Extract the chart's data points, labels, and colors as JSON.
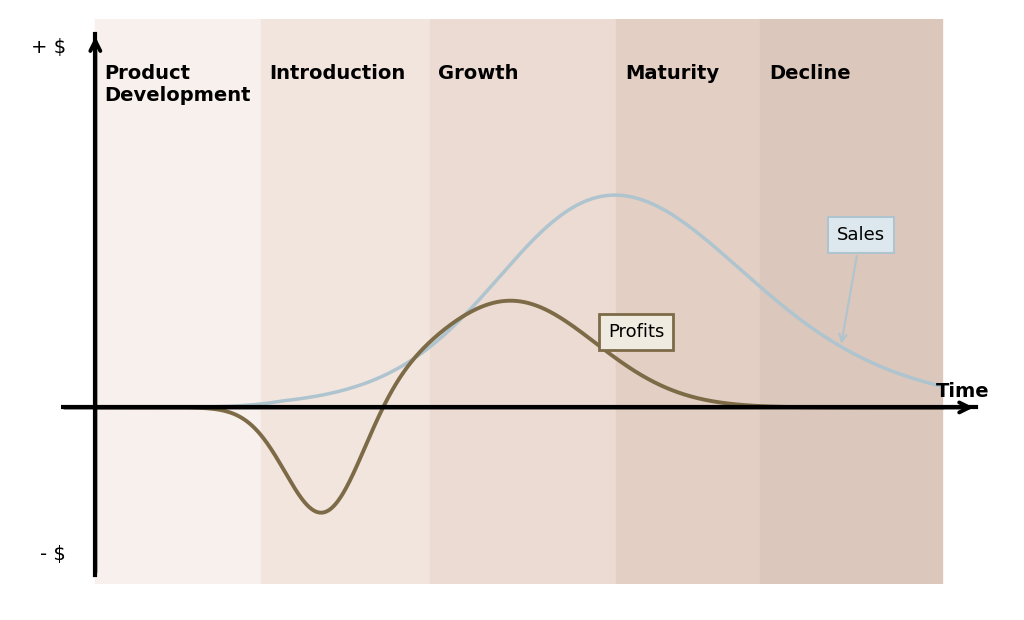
{
  "phases": [
    "Product\nDevelopment",
    "Introduction",
    "Growth",
    "Maturity",
    "Decline"
  ],
  "phase_boundaries": [
    0.0,
    0.195,
    0.395,
    0.615,
    0.785,
    1.0
  ],
  "phase_colors": [
    "#f7f0ec",
    "#f2e5de",
    "#ecdbd2",
    "#e4cfc4",
    "#dcc7bc"
  ],
  "sales_color": "#aec4ce",
  "profits_color": "#7d6b47",
  "axis_color": "#000000",
  "background_color": "#ffffff",
  "xlabel": "Time",
  "ylabel_pos": "+ $",
  "ylabel_neg": "- $",
  "sales_label": "Sales",
  "profits_label": "Profits",
  "label_fontsize": 14,
  "annotation_fontsize": 13
}
